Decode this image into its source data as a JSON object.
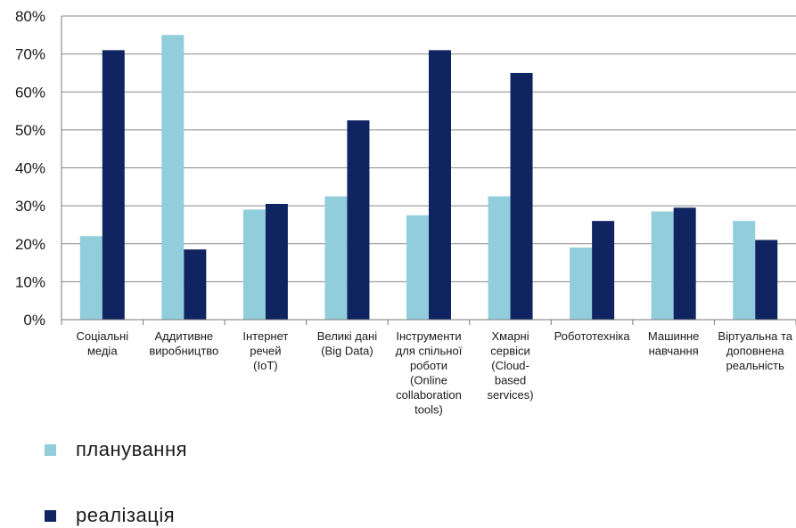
{
  "chart_data": {
    "type": "bar",
    "categories": [
      [
        "Соціальні",
        "медіа"
      ],
      [
        "Аддитивне",
        "виробництво"
      ],
      [
        "Інтернет",
        "речей",
        "(IoT)"
      ],
      [
        "Великі дані",
        "(Big Data)"
      ],
      [
        "Інструменти",
        "для спільної",
        "роботи",
        "(Online",
        "collaboration",
        "tools)"
      ],
      [
        "Хмарні",
        "сервіси",
        "(Cloud-",
        "based",
        "services)"
      ],
      [
        "Робототехніка"
      ],
      [
        "Машинне",
        "навчання"
      ],
      [
        "Віртуальна та",
        "доповнена",
        "реальність"
      ]
    ],
    "series": [
      {
        "name": "планування",
        "color": "#92cddc",
        "values": [
          22,
          75,
          29,
          32.5,
          27.5,
          32.5,
          19,
          28.5,
          26
        ]
      },
      {
        "name": "реалізація",
        "color": "#0f2460",
        "values": [
          71,
          18.5,
          30.5,
          52.5,
          71,
          65,
          26,
          29.5,
          21
        ]
      }
    ],
    "yticks": [
      "0%",
      "10%",
      "20%",
      "30%",
      "40%",
      "50%",
      "60%",
      "70%",
      "80%"
    ],
    "ylim": [
      0,
      80
    ],
    "grid": true,
    "legend_position": "bottom"
  }
}
